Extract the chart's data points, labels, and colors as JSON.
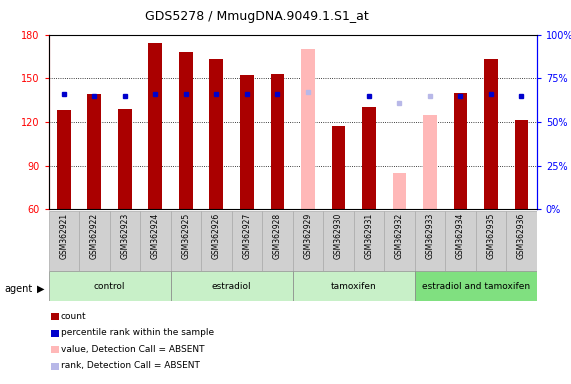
{
  "title": "GDS5278 / MmugDNA.9049.1.S1_at",
  "samples": [
    "GSM362921",
    "GSM362922",
    "GSM362923",
    "GSM362924",
    "GSM362925",
    "GSM362926",
    "GSM362927",
    "GSM362928",
    "GSM362929",
    "GSM362930",
    "GSM362931",
    "GSM362932",
    "GSM362933",
    "GSM362934",
    "GSM362935",
    "GSM362936"
  ],
  "counts": [
    128,
    139,
    129,
    174,
    168,
    163,
    152,
    153,
    null,
    117,
    130,
    null,
    null,
    140,
    163,
    121
  ],
  "rank_vals": [
    66,
    65,
    65,
    66,
    66,
    66,
    66,
    66,
    null,
    null,
    65,
    null,
    null,
    65,
    66,
    65
  ],
  "absent_values": [
    null,
    null,
    null,
    null,
    null,
    null,
    null,
    null,
    170,
    null,
    null,
    85,
    125,
    null,
    null,
    null
  ],
  "absent_rank_vals": [
    null,
    null,
    null,
    null,
    null,
    null,
    null,
    null,
    67,
    null,
    null,
    61,
    65,
    null,
    null,
    null
  ],
  "groups": [
    {
      "label": "control",
      "start": 0,
      "end": 4,
      "color": "#c8f0c8"
    },
    {
      "label": "estradiol",
      "start": 4,
      "end": 8,
      "color": "#c8f0c8"
    },
    {
      "label": "tamoxifen",
      "start": 8,
      "end": 12,
      "color": "#c8f0c8"
    },
    {
      "label": "estradiol and tamoxifen",
      "start": 12,
      "end": 16,
      "color": "#80e080"
    }
  ],
  "ylim_left": [
    60,
    180
  ],
  "ylim_right": [
    0,
    100
  ],
  "yticks_left": [
    60,
    90,
    120,
    150,
    180
  ],
  "yticks_right": [
    0,
    25,
    50,
    75,
    100
  ],
  "bar_color": "#aa0000",
  "rank_color": "#0000cc",
  "absent_bar_color": "#ffb8b8",
  "absent_rank_color": "#b8b8e8",
  "plot_bg": "#ffffff",
  "agent_label": "agent",
  "legend_items": [
    {
      "label": "count",
      "color": "#aa0000"
    },
    {
      "label": "percentile rank within the sample",
      "color": "#0000cc"
    },
    {
      "label": "value, Detection Call = ABSENT",
      "color": "#ffb8b8"
    },
    {
      "label": "rank, Detection Call = ABSENT",
      "color": "#b8b8e8"
    }
  ]
}
